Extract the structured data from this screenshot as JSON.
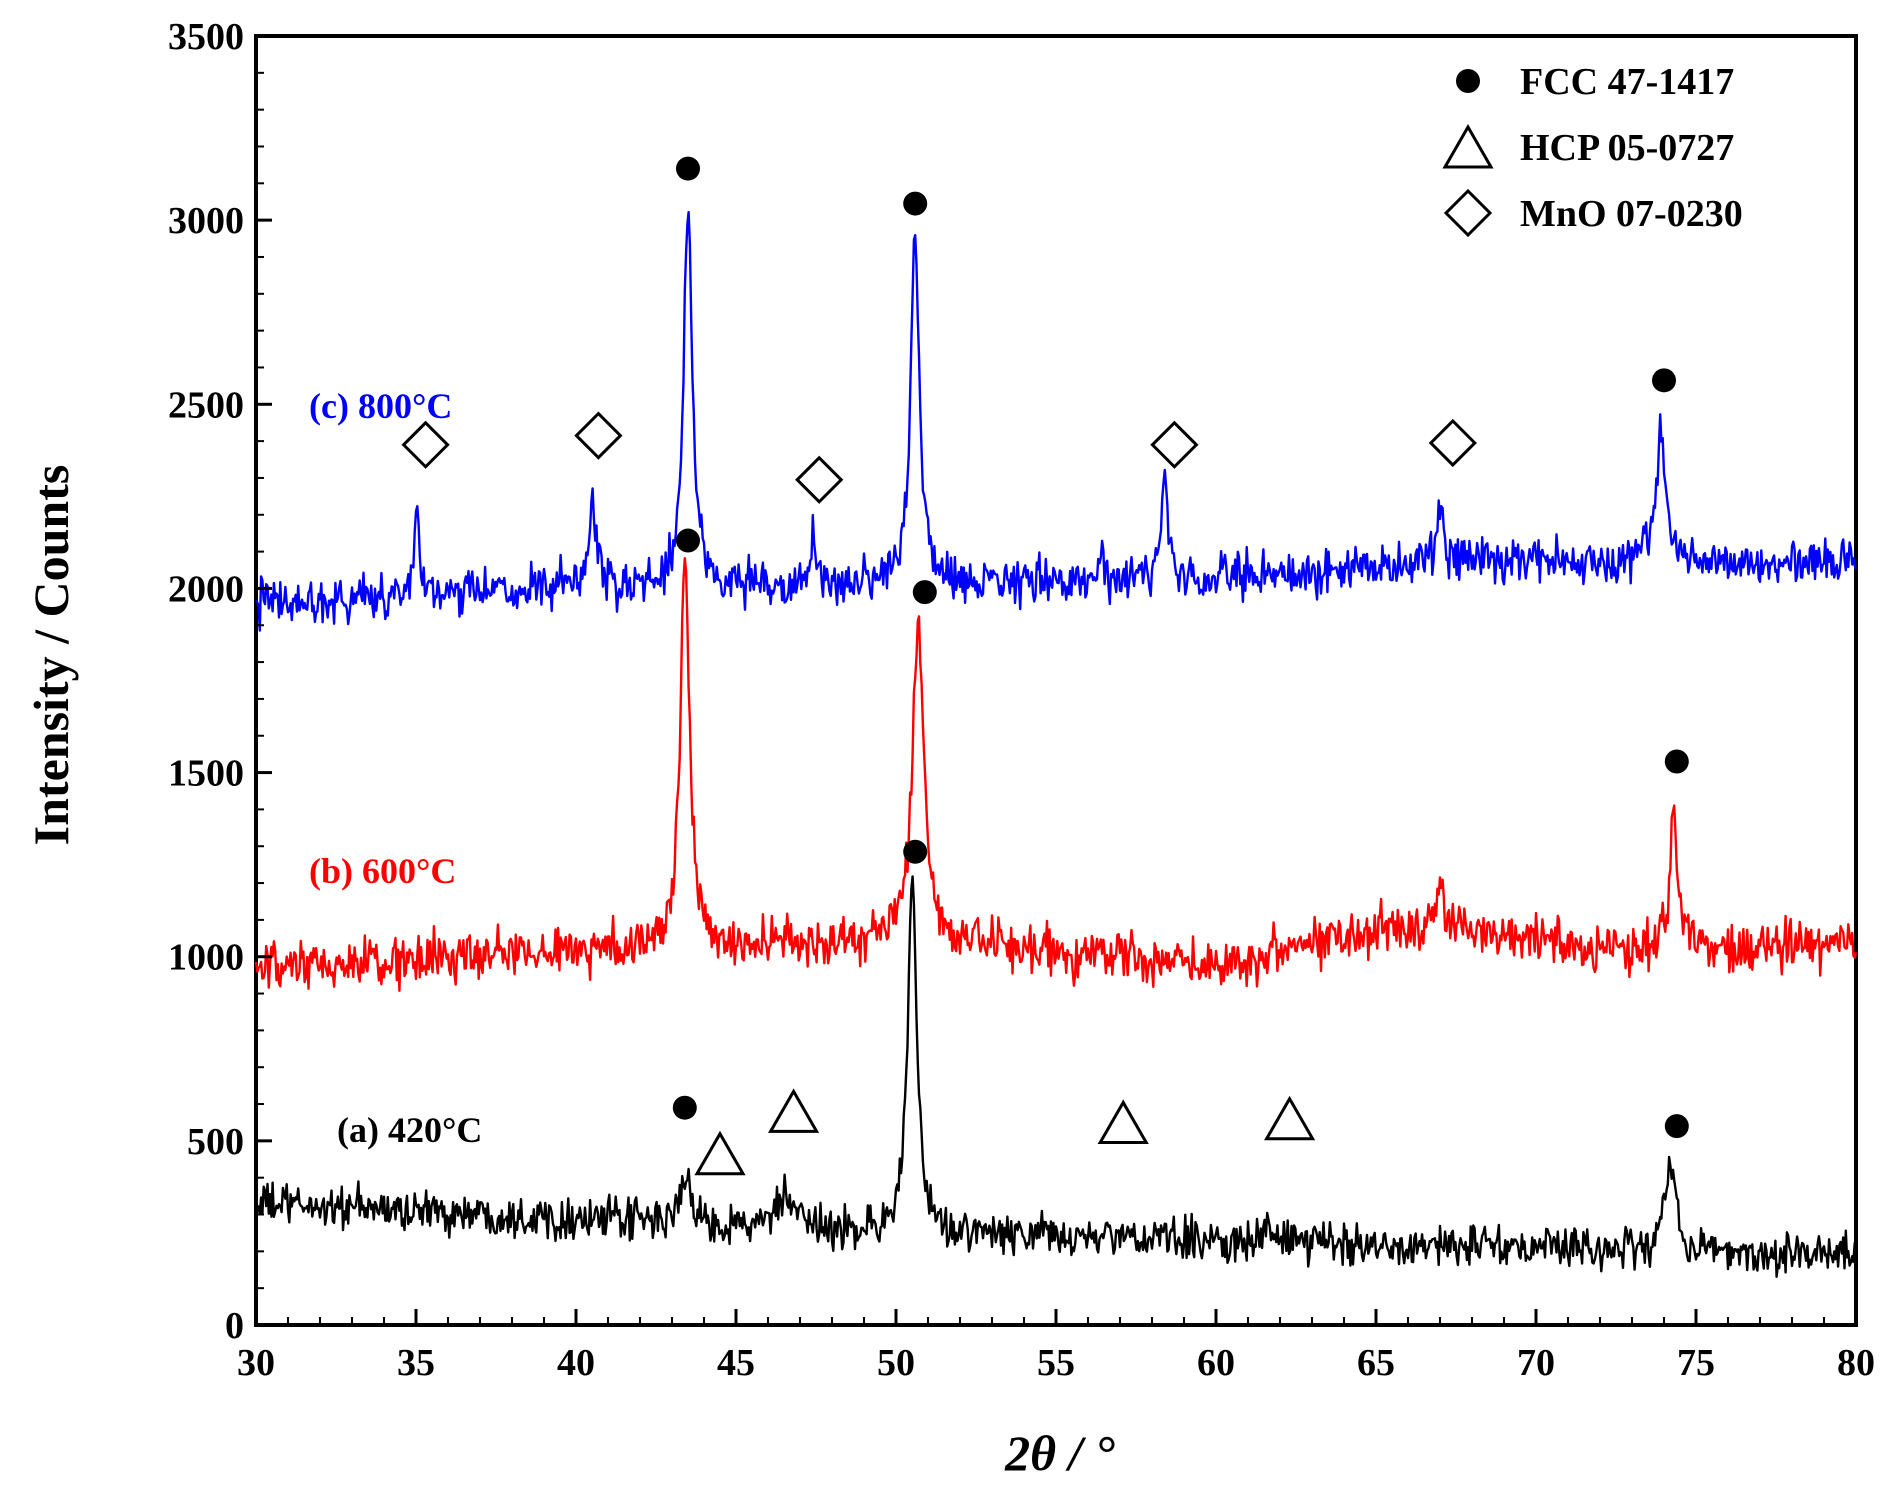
{
  "chart_data": {
    "type": "line",
    "title": "",
    "xlabel": "2θ / °",
    "ylabel": "Intensity / Counts",
    "xlim": [
      30,
      80
    ],
    "ylim": [
      0,
      3500
    ],
    "xticks": [
      "30",
      "35",
      "40",
      "45",
      "50",
      "55",
      "60",
      "65",
      "70",
      "75",
      "80"
    ],
    "yticks": [
      "0",
      "500",
      "1000",
      "1500",
      "2000",
      "2500",
      "3000",
      "3500"
    ],
    "legend_position": "top-right",
    "legend": [
      {
        "marker": "circle",
        "label": "FCC 47-1417"
      },
      {
        "marker": "triangle",
        "label": "HCP 05-0727"
      },
      {
        "marker": "diamond",
        "label": "MnO 07-0230"
      }
    ],
    "series": [
      {
        "name": "(a) 420°C",
        "color": "#000000",
        "baseline_points": [
          [
            30,
            330
          ],
          [
            40,
            290
          ],
          [
            50,
            250
          ],
          [
            60,
            230
          ],
          [
            70,
            210
          ],
          [
            80,
            190
          ]
        ],
        "noise": 35,
        "peaks": [
          [
            43.4,
            150,
            0.15
          ],
          [
            46.5,
            90,
            0.25
          ],
          [
            50.5,
            950,
            0.17
          ],
          [
            61.6,
            40,
            0.12
          ],
          [
            74.2,
            260,
            0.18
          ]
        ]
      },
      {
        "name": "(b) 600°C",
        "color": "#ff0000",
        "baseline_points": [
          [
            30,
            960
          ],
          [
            40,
            1020
          ],
          [
            50,
            1040
          ],
          [
            55,
            1010
          ],
          [
            60,
            980
          ],
          [
            65,
            1080
          ],
          [
            68,
            1080
          ],
          [
            72,
            1020
          ],
          [
            80,
            1040
          ]
        ],
        "noise": 42,
        "peaks": [
          [
            43.4,
            1050,
            0.17
          ],
          [
            50.7,
            860,
            0.22
          ],
          [
            56.4,
            60,
            0.06
          ],
          [
            67.0,
            90,
            0.15
          ],
          [
            74.3,
            380,
            0.14
          ]
        ]
      },
      {
        "name": "(c) 800°C",
        "color": "#0000ff",
        "baseline_points": [
          [
            30,
            1960
          ],
          [
            40,
            2000
          ],
          [
            50,
            2010
          ],
          [
            60,
            2030
          ],
          [
            70,
            2080
          ],
          [
            80,
            2070
          ]
        ],
        "noise": 38,
        "peaks": [
          [
            35.0,
            250,
            0.1
          ],
          [
            40.5,
            240,
            0.12
          ],
          [
            43.5,
            1030,
            0.16
          ],
          [
            47.4,
            140,
            0.08
          ],
          [
            50.6,
            950,
            0.16
          ],
          [
            56.4,
            80,
            0.05
          ],
          [
            58.4,
            260,
            0.12
          ],
          [
            67.0,
            150,
            0.12
          ],
          [
            73.9,
            380,
            0.16
          ]
        ]
      }
    ],
    "annotations": [
      {
        "marker": "circle",
        "x": 43.5,
        "y": 3140
      },
      {
        "marker": "circle",
        "x": 50.6,
        "y": 3045
      },
      {
        "marker": "circle",
        "x": 74.0,
        "y": 2565
      },
      {
        "marker": "diamond",
        "x": 35.3,
        "y": 2390
      },
      {
        "marker": "diamond",
        "x": 40.7,
        "y": 2415
      },
      {
        "marker": "diamond",
        "x": 47.6,
        "y": 2295
      },
      {
        "marker": "diamond",
        "x": 58.7,
        "y": 2390
      },
      {
        "marker": "diamond",
        "x": 67.4,
        "y": 2395
      },
      {
        "marker": "circle",
        "x": 43.5,
        "y": 2130
      },
      {
        "marker": "circle",
        "x": 50.9,
        "y": 1990
      },
      {
        "marker": "circle",
        "x": 74.4,
        "y": 1530
      },
      {
        "marker": "circle",
        "x": 50.6,
        "y": 1285
      },
      {
        "marker": "circle",
        "x": 43.4,
        "y": 590
      },
      {
        "marker": "circle",
        "x": 74.4,
        "y": 540
      },
      {
        "marker": "triangle",
        "x": 44.5,
        "y": 465
      },
      {
        "marker": "triangle",
        "x": 46.8,
        "y": 580
      },
      {
        "marker": "triangle",
        "x": 57.1,
        "y": 550
      },
      {
        "marker": "triangle",
        "x": 62.3,
        "y": 560
      }
    ]
  }
}
